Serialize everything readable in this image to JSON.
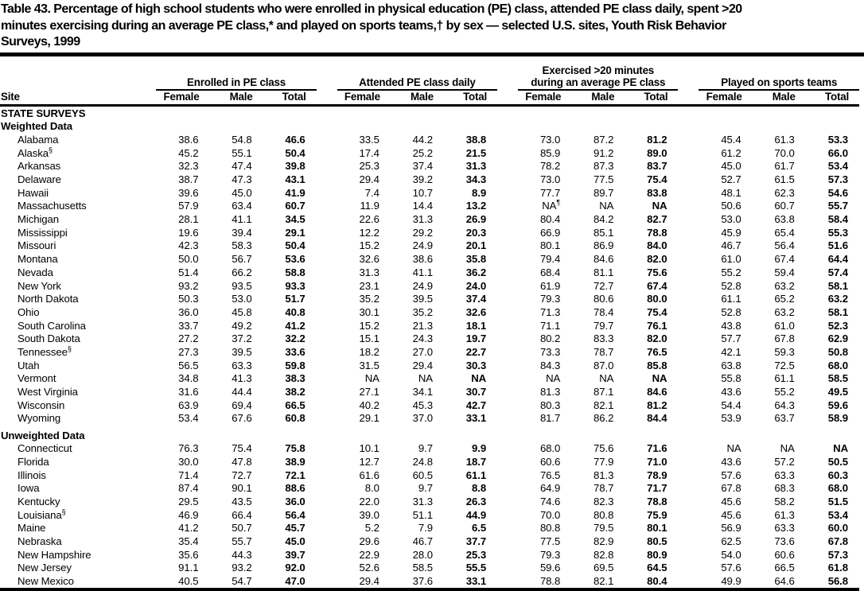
{
  "title_lines": [
    "Table 43. Percentage of high school students who were enrolled in physical education (PE) class, attended PE class daily, spent >20",
    "minutes exercising during an average PE class,* and played on sports teams,† by sex — selected U.S. sites, Youth Risk Behavior",
    "Surveys, 1999"
  ],
  "table": {
    "site_header": "Site",
    "groups": [
      {
        "line1": "",
        "line2": "Enrolled in PE class"
      },
      {
        "line1": "",
        "line2": "Attended PE class daily"
      },
      {
        "line1": "Exercised >20 minutes",
        "line2": "during an average PE class"
      },
      {
        "line1": "",
        "line2": "Played on sports teams"
      }
    ],
    "sub_headers": [
      "Female",
      "Male",
      "Total"
    ],
    "rows": [
      {
        "type": "section",
        "label": "STATE SURVEYS"
      },
      {
        "type": "section",
        "label": "Weighted Data"
      },
      {
        "type": "data",
        "label": "Alabama",
        "values": [
          "38.6",
          "54.8",
          "46.6",
          "33.5",
          "44.2",
          "38.8",
          "73.0",
          "87.2",
          "81.2",
          "45.4",
          "61.3",
          "53.3"
        ]
      },
      {
        "type": "data",
        "label": "Alaska",
        "sup": "§",
        "values": [
          "45.2",
          "55.1",
          "50.4",
          "17.4",
          "25.2",
          "21.5",
          "85.9",
          "91.2",
          "89.0",
          "61.2",
          "70.0",
          "66.0"
        ]
      },
      {
        "type": "data",
        "label": "Arkansas",
        "values": [
          "32.3",
          "47.4",
          "39.8",
          "25.3",
          "37.4",
          "31.3",
          "78.2",
          "87.3",
          "83.7",
          "45.0",
          "61.7",
          "53.4"
        ]
      },
      {
        "type": "data",
        "label": "Delaware",
        "values": [
          "38.7",
          "47.3",
          "43.1",
          "29.4",
          "39.2",
          "34.3",
          "73.0",
          "77.5",
          "75.4",
          "52.7",
          "61.5",
          "57.3"
        ]
      },
      {
        "type": "data",
        "label": "Hawaii",
        "values": [
          "39.6",
          "45.0",
          "41.9",
          "7.4",
          "10.7",
          "8.9",
          "77.7",
          "89.7",
          "83.8",
          "48.1",
          "62.3",
          "54.6"
        ]
      },
      {
        "type": "data",
        "label": "Massachusetts",
        "values": [
          "57.9",
          "63.4",
          "60.7",
          "11.9",
          "14.4",
          "13.2",
          "NA¶",
          "NA",
          "NA",
          "50.6",
          "60.7",
          "55.7"
        ]
      },
      {
        "type": "data",
        "label": "Michigan",
        "values": [
          "28.1",
          "41.1",
          "34.5",
          "22.6",
          "31.3",
          "26.9",
          "80.4",
          "84.2",
          "82.7",
          "53.0",
          "63.8",
          "58.4"
        ]
      },
      {
        "type": "data",
        "label": "Mississippi",
        "values": [
          "19.6",
          "39.4",
          "29.1",
          "12.2",
          "29.2",
          "20.3",
          "66.9",
          "85.1",
          "78.8",
          "45.9",
          "65.4",
          "55.3"
        ]
      },
      {
        "type": "data",
        "label": "Missouri",
        "values": [
          "42.3",
          "58.3",
          "50.4",
          "15.2",
          "24.9",
          "20.1",
          "80.1",
          "86.9",
          "84.0",
          "46.7",
          "56.4",
          "51.6"
        ]
      },
      {
        "type": "data",
        "label": "Montana",
        "values": [
          "50.0",
          "56.7",
          "53.6",
          "32.6",
          "38.6",
          "35.8",
          "79.4",
          "84.6",
          "82.0",
          "61.0",
          "67.4",
          "64.4"
        ]
      },
      {
        "type": "data",
        "label": "Nevada",
        "values": [
          "51.4",
          "66.2",
          "58.8",
          "31.3",
          "41.1",
          "36.2",
          "68.4",
          "81.1",
          "75.6",
          "55.2",
          "59.4",
          "57.4"
        ]
      },
      {
        "type": "data",
        "label": "New York",
        "values": [
          "93.2",
          "93.5",
          "93.3",
          "23.1",
          "24.9",
          "24.0",
          "61.9",
          "72.7",
          "67.4",
          "52.8",
          "63.2",
          "58.1"
        ]
      },
      {
        "type": "data",
        "label": "North Dakota",
        "values": [
          "50.3",
          "53.0",
          "51.7",
          "35.2",
          "39.5",
          "37.4",
          "79.3",
          "80.6",
          "80.0",
          "61.1",
          "65.2",
          "63.2"
        ]
      },
      {
        "type": "data",
        "label": "Ohio",
        "values": [
          "36.0",
          "45.8",
          "40.8",
          "30.1",
          "35.2",
          "32.6",
          "71.3",
          "78.4",
          "75.4",
          "52.8",
          "63.2",
          "58.1"
        ]
      },
      {
        "type": "data",
        "label": "South Carolina",
        "values": [
          "33.7",
          "49.2",
          "41.2",
          "15.2",
          "21.3",
          "18.1",
          "71.1",
          "79.7",
          "76.1",
          "43.8",
          "61.0",
          "52.3"
        ]
      },
      {
        "type": "data",
        "label": "South Dakota",
        "values": [
          "27.2",
          "37.2",
          "32.2",
          "15.1",
          "24.3",
          "19.7",
          "80.2",
          "83.3",
          "82.0",
          "57.7",
          "67.8",
          "62.9"
        ]
      },
      {
        "type": "data",
        "label": "Tennessee",
        "sup": "§",
        "values": [
          "27.3",
          "39.5",
          "33.6",
          "18.2",
          "27.0",
          "22.7",
          "73.3",
          "78.7",
          "76.5",
          "42.1",
          "59.3",
          "50.8"
        ]
      },
      {
        "type": "data",
        "label": "Utah",
        "values": [
          "56.5",
          "63.3",
          "59.8",
          "31.5",
          "29.4",
          "30.3",
          "84.3",
          "87.0",
          "85.8",
          "63.8",
          "72.5",
          "68.0"
        ]
      },
      {
        "type": "data",
        "label": "Vermont",
        "values": [
          "34.8",
          "41.3",
          "38.3",
          "NA",
          "NA",
          "NA",
          "NA",
          "NA",
          "NA",
          "55.8",
          "61.1",
          "58.5"
        ]
      },
      {
        "type": "data",
        "label": "West Virginia",
        "values": [
          "31.6",
          "44.4",
          "38.2",
          "27.1",
          "34.1",
          "30.7",
          "81.3",
          "87.1",
          "84.6",
          "43.6",
          "55.2",
          "49.5"
        ]
      },
      {
        "type": "data",
        "label": "Wisconsin",
        "values": [
          "63.9",
          "69.4",
          "66.5",
          "40.2",
          "45.3",
          "42.7",
          "80.3",
          "82.1",
          "81.2",
          "54.4",
          "64.3",
          "59.6"
        ]
      },
      {
        "type": "data",
        "label": "Wyoming",
        "values": [
          "53.4",
          "67.6",
          "60.8",
          "29.1",
          "37.0",
          "33.1",
          "81.7",
          "86.2",
          "84.4",
          "53.9",
          "63.7",
          "58.9"
        ]
      },
      {
        "type": "section",
        "label": "Unweighted Data",
        "gap": true
      },
      {
        "type": "data",
        "label": "Connecticut",
        "values": [
          "76.3",
          "75.4",
          "75.8",
          "10.1",
          "9.7",
          "9.9",
          "68.0",
          "75.6",
          "71.6",
          "NA",
          "NA",
          "NA"
        ]
      },
      {
        "type": "data",
        "label": "Florida",
        "values": [
          "30.0",
          "47.8",
          "38.9",
          "12.7",
          "24.8",
          "18.7",
          "60.6",
          "77.9",
          "71.0",
          "43.6",
          "57.2",
          "50.5"
        ]
      },
      {
        "type": "data",
        "label": "Illinois",
        "values": [
          "71.4",
          "72.7",
          "72.1",
          "61.6",
          "60.5",
          "61.1",
          "76.5",
          "81.3",
          "78.9",
          "57.6",
          "63.3",
          "60.3"
        ]
      },
      {
        "type": "data",
        "label": "Iowa",
        "values": [
          "87.4",
          "90.1",
          "88.6",
          "8.0",
          "9.7",
          "8.8",
          "64.9",
          "78.7",
          "71.7",
          "67.8",
          "68.3",
          "68.0"
        ]
      },
      {
        "type": "data",
        "label": "Kentucky",
        "values": [
          "29.5",
          "43.5",
          "36.0",
          "22.0",
          "31.3",
          "26.3",
          "74.6",
          "82.3",
          "78.8",
          "45.6",
          "58.2",
          "51.5"
        ]
      },
      {
        "type": "data",
        "label": "Louisiana",
        "sup": "§",
        "values": [
          "46.9",
          "66.4",
          "56.4",
          "39.0",
          "51.1",
          "44.9",
          "70.0",
          "80.8",
          "75.9",
          "45.6",
          "61.3",
          "53.4"
        ]
      },
      {
        "type": "data",
        "label": "Maine",
        "values": [
          "41.2",
          "50.7",
          "45.7",
          "5.2",
          "7.9",
          "6.5",
          "80.8",
          "79.5",
          "80.1",
          "56.9",
          "63.3",
          "60.0"
        ]
      },
      {
        "type": "data",
        "label": "Nebraska",
        "values": [
          "35.4",
          "55.7",
          "45.0",
          "29.6",
          "46.7",
          "37.7",
          "77.5",
          "82.9",
          "80.5",
          "62.5",
          "73.6",
          "67.8"
        ]
      },
      {
        "type": "data",
        "label": "New Hampshire",
        "values": [
          "35.6",
          "44.3",
          "39.7",
          "22.9",
          "28.0",
          "25.3",
          "79.3",
          "82.8",
          "80.9",
          "54.0",
          "60.6",
          "57.3"
        ]
      },
      {
        "type": "data",
        "label": "New Jersey",
        "values": [
          "91.1",
          "93.2",
          "92.0",
          "52.6",
          "58.5",
          "55.5",
          "59.6",
          "69.5",
          "64.5",
          "57.6",
          "66.5",
          "61.8"
        ]
      },
      {
        "type": "data",
        "label": "New Mexico",
        "values": [
          "40.5",
          "54.7",
          "47.0",
          "29.4",
          "37.6",
          "33.1",
          "78.8",
          "82.1",
          "80.4",
          "49.9",
          "64.6",
          "56.8"
        ]
      }
    ]
  }
}
